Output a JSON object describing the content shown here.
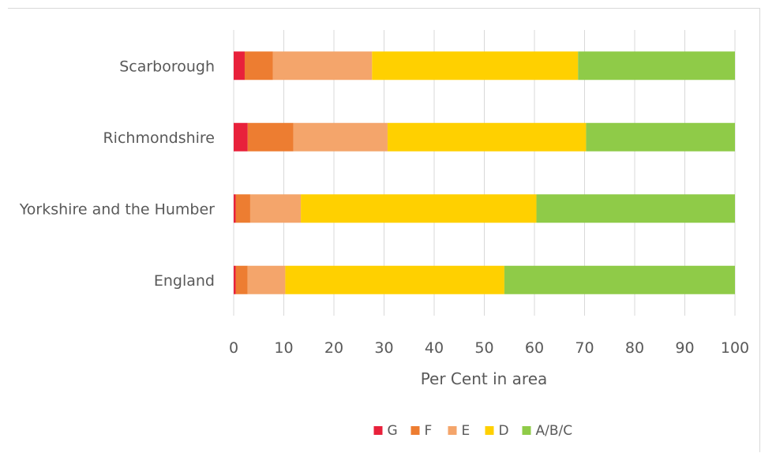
{
  "chart_data": {
    "type": "bar",
    "orientation": "horizontal",
    "stacked": true,
    "categories": [
      "Scarborough",
      "Richmondshire",
      "Yorkshire and the Humber",
      "England"
    ],
    "series": [
      {
        "name": "G",
        "color": "#e8213b",
        "values": [
          2.2,
          2.8,
          0.4,
          0.4
        ]
      },
      {
        "name": "F",
        "color": "#ed7d31",
        "values": [
          5.6,
          9.1,
          2.9,
          2.4
        ]
      },
      {
        "name": "E",
        "color": "#f4a56b",
        "values": [
          19.8,
          18.8,
          10.1,
          7.5
        ]
      },
      {
        "name": "D",
        "color": "#ffd000",
        "values": [
          41.1,
          39.6,
          47.0,
          43.7
        ]
      },
      {
        "name": "A/B/C",
        "color": "#8fcb48",
        "values": [
          31.3,
          29.7,
          39.6,
          46.0
        ]
      }
    ],
    "xlabel": "Per Cent in area",
    "xlim": [
      0,
      100
    ],
    "xticks": [
      "0",
      "10",
      "20",
      "30",
      "40",
      "50",
      "60",
      "70",
      "80",
      "90",
      "100"
    ],
    "grid": true,
    "legend_position": "bottom"
  }
}
